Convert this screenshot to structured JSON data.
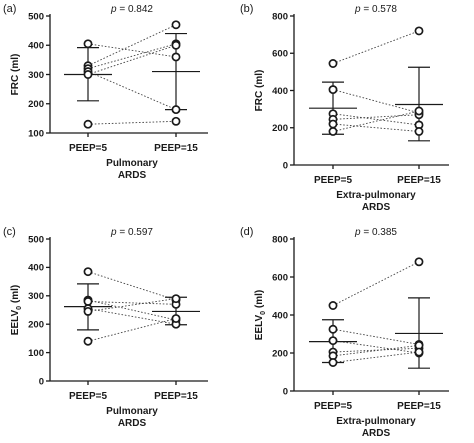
{
  "chart_data": [
    {
      "type": "scatter",
      "panel_label": "(a)",
      "p_prefix": "p",
      "p_value": "= 0.842",
      "ylabel": "FRC (ml)",
      "yticks": [
        100,
        200,
        300,
        400,
        500
      ],
      "ylim": [
        100,
        500
      ],
      "categories": [
        "PEEP=5",
        "PEEP=15"
      ],
      "group_label": [
        "Pulmonary",
        "ARDS"
      ],
      "pairs": [
        [
          405,
          360
        ],
        [
          330,
          470
        ],
        [
          320,
          405
        ],
        [
          310,
          180
        ],
        [
          300,
          400
        ],
        [
          130,
          140
        ]
      ],
      "summary": [
        {
          "mean": 300,
          "low": 210,
          "high": 392
        },
        {
          "mean": 310,
          "low": 180,
          "high": 440
        }
      ]
    },
    {
      "type": "scatter",
      "panel_label": "(b)",
      "p_prefix": "p",
      "p_value": "= 0.578",
      "ylabel": "FRC (ml)",
      "yticks": [
        0,
        200,
        400,
        600,
        800
      ],
      "ylim": [
        0,
        800
      ],
      "categories": [
        "PEEP=5",
        "PEEP=15"
      ],
      "group_label": [
        "Extra-pulmonary",
        "ARDS"
      ],
      "pairs": [
        [
          545,
          720
        ],
        [
          405,
          280
        ],
        [
          275,
          215
        ],
        [
          245,
          270
        ],
        [
          220,
          180
        ],
        [
          180,
          290
        ]
      ],
      "summary": [
        {
          "mean": 305,
          "low": 165,
          "high": 445
        },
        {
          "mean": 325,
          "low": 130,
          "high": 525
        }
      ]
    },
    {
      "type": "scatter",
      "panel_label": "(c)",
      "p_prefix": "p",
      "p_value": "= 0.597",
      "ylabel": "EELV",
      "ylabel_sub": "0",
      "ylabel_unit": " (ml)",
      "yticks": [
        0,
        100,
        200,
        300,
        400,
        500
      ],
      "ylim": [
        0,
        500
      ],
      "categories": [
        "PEEP=5",
        "PEEP=15"
      ],
      "group_label": [
        "Pulmonary",
        "ARDS"
      ],
      "pairs": [
        [
          385,
          285
        ],
        [
          285,
          215
        ],
        [
          280,
          270
        ],
        [
          255,
          200
        ],
        [
          245,
          290
        ],
        [
          140,
          220
        ]
      ],
      "summary": [
        {
          "mean": 262,
          "low": 180,
          "high": 342
        },
        {
          "mean": 245,
          "low": 198,
          "high": 295
        }
      ]
    },
    {
      "type": "scatter",
      "panel_label": "(d)",
      "p_prefix": "p",
      "p_value": "= 0.385",
      "ylabel": "EELV",
      "ylabel_sub": "0",
      "ylabel_unit": " (ml)",
      "yticks": [
        0,
        200,
        400,
        600,
        800
      ],
      "ylim": [
        0,
        800
      ],
      "categories": [
        "PEEP=5",
        "PEEP=15"
      ],
      "group_label": [
        "Extra-pulmonary",
        "ARDS"
      ],
      "pairs": [
        [
          450,
          680
        ],
        [
          325,
          245
        ],
        [
          265,
          200
        ],
        [
          205,
          225
        ],
        [
          185,
          240
        ],
        [
          150,
          205
        ]
      ],
      "summary": [
        {
          "mean": 260,
          "low": 150,
          "high": 375
        },
        {
          "mean": 303,
          "low": 120,
          "high": 490
        }
      ]
    }
  ]
}
